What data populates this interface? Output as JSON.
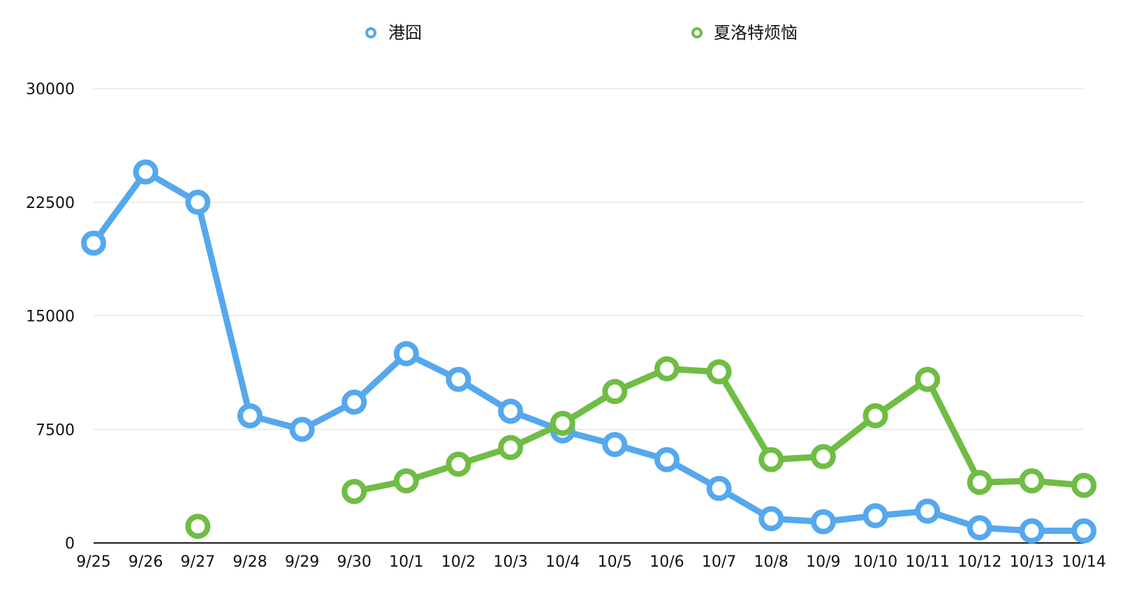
{
  "chart_data": {
    "type": "line",
    "categories": [
      "9/25",
      "9/26",
      "9/27",
      "9/28",
      "9/29",
      "9/30",
      "10/1",
      "10/2",
      "10/3",
      "10/4",
      "10/5",
      "10/6",
      "10/7",
      "10/8",
      "10/9",
      "10/10",
      "10/11",
      "10/12",
      "10/13",
      "10/14"
    ],
    "y_ticks": [
      "0",
      "7500",
      "15000",
      "22500",
      "30000"
    ],
    "ylim": [
      0,
      30000
    ],
    "grid": true,
    "legend_position": "top",
    "series": [
      {
        "name": "港囧",
        "color": "#55a8ee",
        "values": [
          19800,
          24500,
          22500,
          8400,
          7500,
          9300,
          12500,
          10800,
          8700,
          7400,
          6500,
          5500,
          3600,
          1600,
          1400,
          1800,
          2100,
          1000,
          800,
          800
        ]
      },
      {
        "name": "夏洛特烦恼",
        "color": "#6fbd44",
        "values": [
          null,
          null,
          1100,
          null,
          null,
          3400,
          4100,
          5200,
          6300,
          7900,
          10000,
          11500,
          11300,
          5500,
          5700,
          8400,
          10800,
          4000,
          4100,
          3800
        ]
      }
    ]
  }
}
